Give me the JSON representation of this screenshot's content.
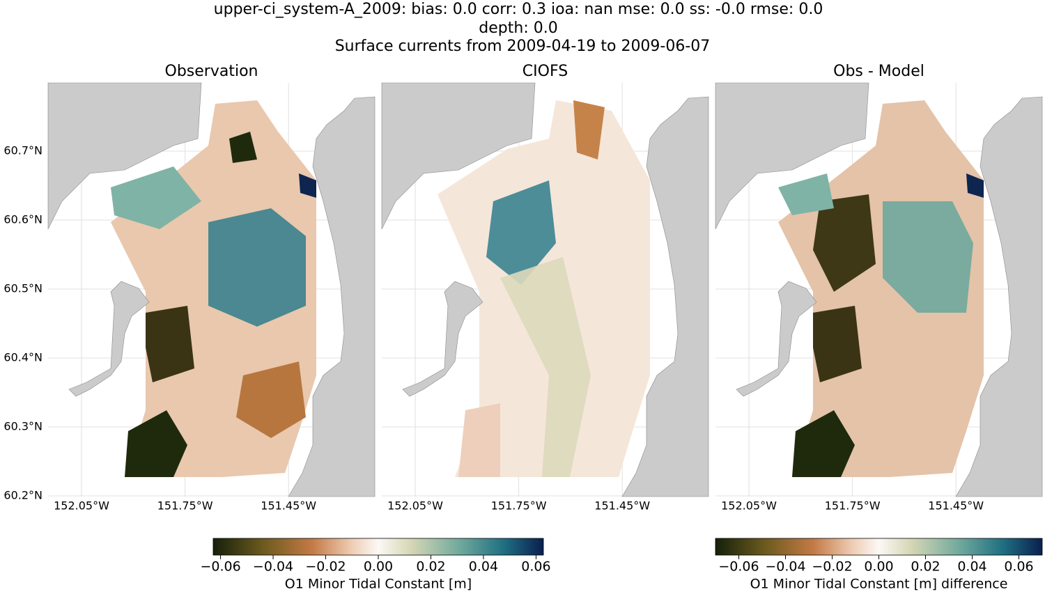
{
  "title": [
    "upper-ci_system-A_2009: bias: 0.0  corr: 0.3  ioa: nan  mse: 0.0  ss: -0.0  rmse: 0.0",
    "depth: 0.0",
    "Surface currents from 2009-04-19 to 2009-06-07"
  ],
  "panels": [
    {
      "title": "Observation",
      "xlim": [
        -152.147,
        -151.2
      ],
      "ylim": [
        60.199,
        60.799
      ],
      "xticks": [
        {
          "value": -152.05,
          "label": "152.05°W"
        },
        {
          "value": -151.75,
          "label": "151.75°W"
        },
        {
          "value": -151.45,
          "label": "151.45°W"
        }
      ],
      "yticks": [
        {
          "value": 60.2,
          "label": "60.2°N"
        },
        {
          "value": 60.3,
          "label": "60.3°N"
        },
        {
          "value": 60.4,
          "label": "60.4°N"
        },
        {
          "value": 60.5,
          "label": "60.5°N"
        },
        {
          "value": 60.6,
          "label": "60.6°N"
        },
        {
          "value": 60.7,
          "label": "60.7°N"
        }
      ]
    },
    {
      "title": "CIOFS",
      "xlim": [
        -152.147,
        -151.2
      ],
      "ylim": [
        60.199,
        60.799
      ],
      "xticks": [
        {
          "value": -152.05,
          "label": "152.05°W"
        },
        {
          "value": -151.75,
          "label": "151.75°W"
        },
        {
          "value": -151.45,
          "label": "151.45°W"
        }
      ]
    },
    {
      "title": "Obs - Model",
      "xlim": [
        -152.147,
        -151.2
      ],
      "ylim": [
        60.199,
        60.799
      ],
      "xticks": [
        {
          "value": -152.05,
          "label": "152.05°W"
        },
        {
          "value": -151.75,
          "label": "151.75°W"
        },
        {
          "value": -151.45,
          "label": "151.45°W"
        }
      ]
    }
  ],
  "colorbars": [
    {
      "label": "O1 Minor Tidal Constant [m]",
      "xlim": [
        -0.0628,
        0.0628
      ],
      "xticks": [
        {
          "value": -0.06,
          "label": "−0.06"
        },
        {
          "value": -0.04,
          "label": "−0.04"
        },
        {
          "value": -0.02,
          "label": "−0.02"
        },
        {
          "value": 0,
          "label": "0.00"
        },
        0.02,
        0.04,
        0.06
      ]
    },
    {
      "label": "O1 Minor Tidal Constant [m] difference",
      "xlim": [
        -0.07,
        0.07
      ],
      "xticks": [
        {
          "value": -0.06,
          "label": "−0.06"
        },
        {
          "value": -0.04,
          "label": "−0.04"
        },
        {
          "value": -0.02,
          "label": "−0.02"
        },
        {
          "value": 0,
          "label": "0.00"
        },
        0.02,
        0.04,
        0.06
      ]
    }
  ]
}
